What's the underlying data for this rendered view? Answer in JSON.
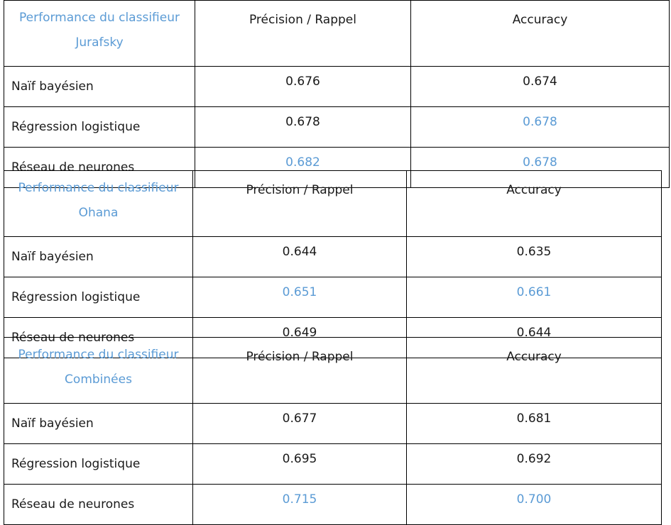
{
  "colors": {
    "highlight": "#5b9bd5",
    "text": "#1a1a1a",
    "border": "#000000"
  },
  "tables": [
    {
      "title_line1": "Performance du classifieur",
      "title_line2": "Jurafsky",
      "col1": "Précision / Rappel",
      "col2": "Accuracy",
      "rows": [
        {
          "label": "Naïf bayésien",
          "precision": "0.676",
          "accuracy": "0.674",
          "precision_best": false,
          "accuracy_best": false
        },
        {
          "label": "Régression logistique",
          "precision": "0.678",
          "accuracy": "0.678",
          "precision_best": false,
          "accuracy_best": true
        },
        {
          "label": "Réseau de neurones",
          "precision": "0.682",
          "accuracy": "0.678",
          "precision_best": true,
          "accuracy_best": true
        }
      ]
    },
    {
      "title_line1": "Performance du classifieur",
      "title_line2": "Ohana",
      "col1": "Précision / Rappel",
      "col2": "Accuracy",
      "rows": [
        {
          "label": "Naïf bayésien",
          "precision": "0.644",
          "accuracy": "0.635",
          "precision_best": false,
          "accuracy_best": false
        },
        {
          "label": "Régression logistique",
          "precision": "0.651",
          "accuracy": "0.661",
          "precision_best": true,
          "accuracy_best": true
        },
        {
          "label": "Réseau de neurones",
          "precision": "0.649",
          "accuracy": "0.644",
          "precision_best": false,
          "accuracy_best": false
        }
      ]
    },
    {
      "title_line1": "Performance du classifieur",
      "title_line2": "Combinées",
      "col1": "Précision / Rappel",
      "col2": "Accuracy",
      "rows": [
        {
          "label": "Naïf bayésien",
          "precision": "0.677",
          "accuracy": "0.681",
          "precision_best": false,
          "accuracy_best": false
        },
        {
          "label": "Régression logistique",
          "precision": "0.695",
          "accuracy": "0.692",
          "precision_best": false,
          "accuracy_best": false
        },
        {
          "label": "Réseau de neurones",
          "precision": "0.715",
          "accuracy": "0.700",
          "precision_best": true,
          "accuracy_best": true
        }
      ]
    }
  ]
}
